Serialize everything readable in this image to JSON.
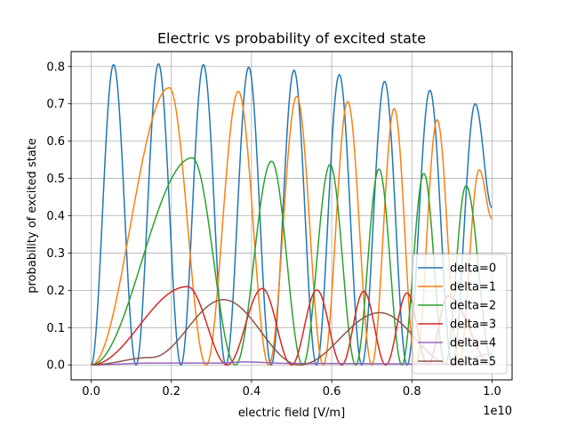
{
  "chart_data": {
    "type": "line",
    "title": "Electric vs probability of excited state",
    "xlabel": "electric field [V/m]",
    "ylabel": "probability of excited state",
    "x_offset_label": "1e10",
    "xlim": [
      -0.05,
      1.05
    ],
    "ylim": [
      -0.04,
      0.84
    ],
    "x_ticks": [
      0.0,
      0.2,
      0.4,
      0.6,
      0.8,
      1.0
    ],
    "x_tick_labels": [
      "0.0",
      "0.2",
      "0.4",
      "0.6",
      "0.8",
      "1.0"
    ],
    "y_ticks": [
      0.0,
      0.1,
      0.2,
      0.3,
      0.4,
      0.5,
      0.6,
      0.7,
      0.8
    ],
    "y_tick_labels": [
      "0.0",
      "0.1",
      "0.2",
      "0.3",
      "0.4",
      "0.5",
      "0.6",
      "0.7",
      "0.8"
    ],
    "grid": true,
    "legend_position": "lower-right",
    "series": [
      {
        "name": "delta=0",
        "color": "#1f77b4",
        "samples": 1600,
        "peaks": [
          [
            0.056,
            0.805
          ],
          [
            0.168,
            0.807
          ],
          [
            0.28,
            0.805
          ],
          [
            0.393,
            0.798
          ],
          [
            0.506,
            0.79
          ],
          [
            0.619,
            0.778
          ],
          [
            0.732,
            0.76
          ],
          [
            0.845,
            0.736
          ],
          [
            0.958,
            0.7
          ]
        ],
        "x": [
          0.0,
          0.056,
          0.112,
          0.168,
          0.224,
          0.28,
          0.336,
          0.393,
          0.449,
          0.506,
          0.562,
          0.619,
          0.675,
          0.732,
          0.788,
          0.845,
          0.901,
          0.958,
          1.0
        ],
        "y": [
          0.0,
          0.805,
          0.0,
          0.807,
          0.0,
          0.805,
          0.0,
          0.798,
          0.0,
          0.79,
          0.0,
          0.778,
          0.0,
          0.76,
          0.0,
          0.736,
          0.0,
          0.7,
          0.422
        ]
      },
      {
        "name": "delta=1",
        "color": "#ff7f0e",
        "samples": 1600,
        "peaks": [
          [
            0.195,
            0.743
          ],
          [
            0.367,
            0.733
          ],
          [
            0.513,
            0.72
          ],
          [
            0.64,
            0.706
          ],
          [
            0.756,
            0.687
          ],
          [
            0.863,
            0.657
          ],
          [
            0.968,
            0.523
          ]
        ],
        "x": [
          0.0,
          0.195,
          0.287,
          0.367,
          0.443,
          0.513,
          0.579,
          0.64,
          0.7,
          0.756,
          0.81,
          0.863,
          0.917,
          0.968,
          1.0
        ],
        "y": [
          0.0,
          0.743,
          0.0,
          0.733,
          0.0,
          0.72,
          0.0,
          0.706,
          0.0,
          0.687,
          0.0,
          0.657,
          0.0,
          0.523,
          0.392
        ]
      },
      {
        "name": "delta=2",
        "color": "#2ca02c",
        "samples": 1600,
        "peaks": [
          [
            0.252,
            0.555
          ],
          [
            0.45,
            0.546
          ],
          [
            0.596,
            0.537
          ],
          [
            0.718,
            0.525
          ],
          [
            0.83,
            0.513
          ],
          [
            0.935,
            0.48
          ]
        ],
        "x": [
          0.0,
          0.252,
          0.36,
          0.45,
          0.528,
          0.596,
          0.66,
          0.718,
          0.775,
          0.83,
          0.883,
          0.935,
          1.0
        ],
        "y": [
          0.0,
          0.555,
          0.0,
          0.546,
          0.0,
          0.537,
          0.0,
          0.525,
          0.0,
          0.513,
          0.0,
          0.48,
          0.01
        ]
      },
      {
        "name": "delta=3",
        "color": "#d62728",
        "samples": 1600,
        "peaks": [
          [
            0.24,
            0.21
          ],
          [
            0.427,
            0.205
          ],
          [
            0.563,
            0.201
          ],
          [
            0.68,
            0.197
          ],
          [
            0.788,
            0.193
          ],
          [
            0.89,
            0.185
          ]
        ],
        "x": [
          0.0,
          0.24,
          0.34,
          0.427,
          0.5,
          0.563,
          0.625,
          0.68,
          0.735,
          0.788,
          0.84,
          0.89,
          1.0
        ],
        "y": [
          0.0,
          0.21,
          0.0,
          0.205,
          0.0,
          0.201,
          0.0,
          0.197,
          0.0,
          0.193,
          0.0,
          0.185,
          0.0
        ]
      },
      {
        "name": "delta=4",
        "color": "#9467bd",
        "samples": 1600,
        "x": [
          0.0,
          0.15,
          0.32,
          0.38,
          0.5,
          1.0
        ],
        "y": [
          0.0,
          0.005,
          0.005,
          0.008,
          0.004,
          0.002
        ]
      },
      {
        "name": "delta=5",
        "color": "#8c564b",
        "samples": 1600,
        "peaks": [
          [
            0.33,
            0.175
          ],
          [
            0.72,
            0.14
          ]
        ],
        "x": [
          0.0,
          0.15,
          0.33,
          0.52,
          0.72,
          0.9,
          1.0
        ],
        "y": [
          0.0,
          0.02,
          0.175,
          0.0,
          0.14,
          0.0,
          0.03
        ]
      }
    ]
  }
}
